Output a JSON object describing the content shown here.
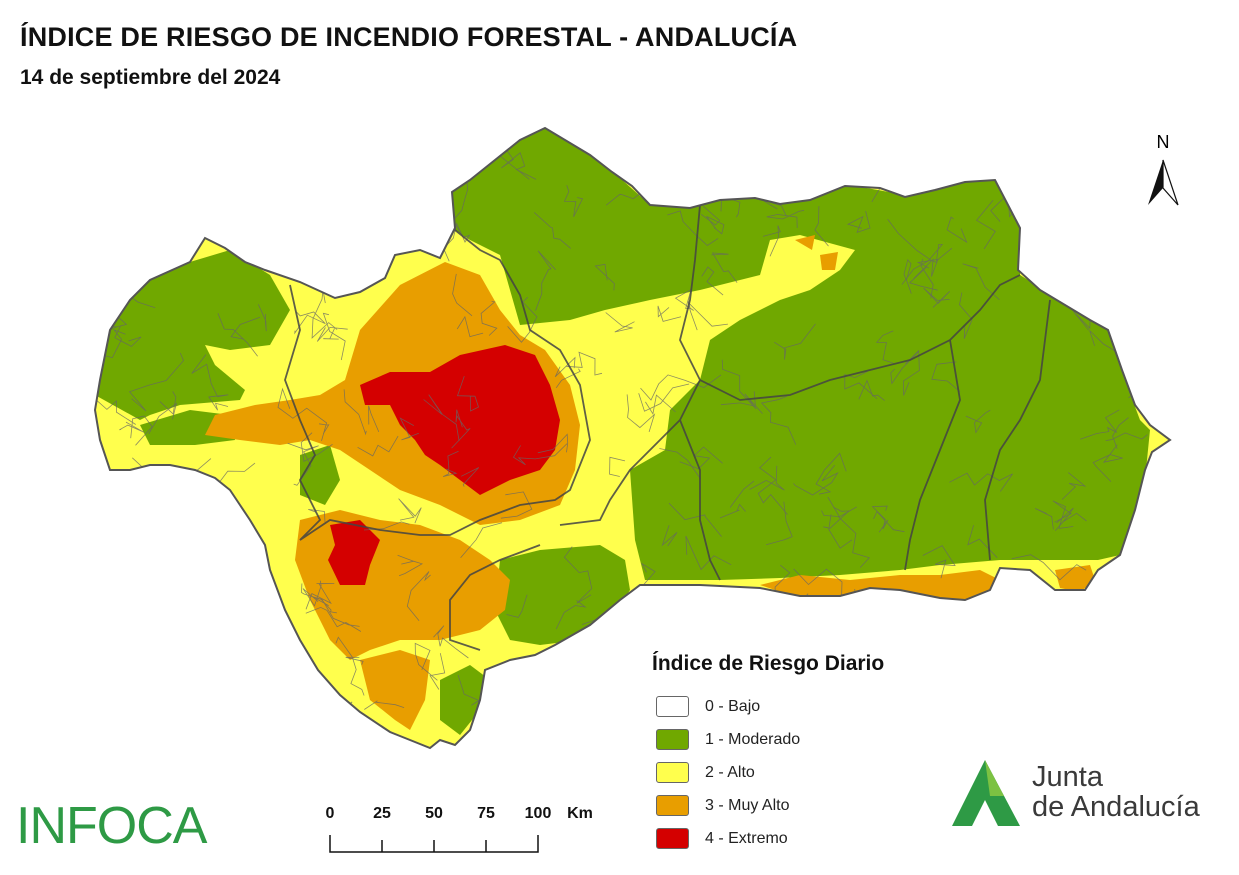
{
  "header": {
    "title": "ÍNDICE DE RIESGO DE INCENDIO FORESTAL - ANDALUCÍA",
    "subtitle": "14 de septiembre del 2024"
  },
  "north_arrow": {
    "label": "N"
  },
  "legend": {
    "title": "Índice de Riesgo Diario",
    "items": [
      {
        "label": "0 - Bajo",
        "color": "#ffffff"
      },
      {
        "label": "1 - Moderado",
        "color": "#70a800"
      },
      {
        "label": "2 - Alto",
        "color": "#ffff4d"
      },
      {
        "label": "3 - Muy Alto",
        "color": "#e89e00"
      },
      {
        "label": "4 - Extremo",
        "color": "#d40000"
      }
    ]
  },
  "scale_bar": {
    "ticks": [
      "0",
      "25",
      "50",
      "75",
      "100"
    ],
    "unit": "Km"
  },
  "logos": {
    "infoca": "INFOCA",
    "junta_line1": "Junta",
    "junta_line2": "de Andalucía",
    "brand_green": "#2e9a45"
  },
  "map_colors": {
    "border": "#555555",
    "moderado": "#70a800",
    "alto": "#ffff4d",
    "muy_alto": "#e89e00",
    "extremo": "#d40000"
  }
}
